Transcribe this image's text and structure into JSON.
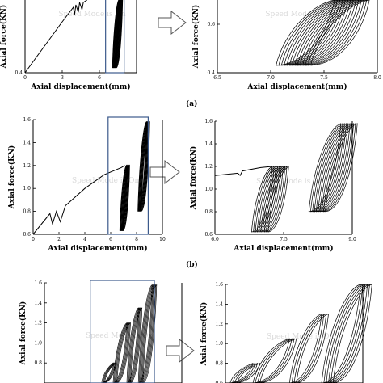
{
  "captions": [
    "(a)",
    "(b)"
  ],
  "watermark": "Speed Mode is On",
  "chart_data": [
    {
      "id": "a-left",
      "type": "line",
      "xlabel": "Axial displacement(mm)",
      "ylabel": "Axial force(KN)",
      "xlim": [
        0,
        9
      ],
      "ylim": [
        0.4,
        0.7
      ],
      "xticks": [
        0,
        3,
        6
      ],
      "yticks": [
        0.4
      ],
      "highlight": [
        6.5,
        8.0
      ],
      "curve": [
        [
          0.0,
          0.4
        ],
        [
          1.0,
          0.47
        ],
        [
          2.0,
          0.54
        ],
        [
          3.0,
          0.61
        ],
        [
          3.9,
          0.67
        ],
        [
          4.0,
          0.64
        ],
        [
          4.1,
          0.68
        ],
        [
          4.3,
          0.65
        ],
        [
          4.4,
          0.69
        ],
        [
          4.6,
          0.66
        ],
        [
          4.7,
          0.69
        ],
        [
          5.0,
          0.7
        ]
      ],
      "loops": {
        "x0": 7.05,
        "x1": 7.55,
        "y0": 0.42,
        "y1": 0.7,
        "n": 14,
        "dx": 0.025
      }
    },
    {
      "id": "a-right",
      "type": "line",
      "xlabel": "Axial displacement(mm)",
      "ylabel": "Axial force(KN)",
      "xlim": [
        6.5,
        8.0
      ],
      "ylim": [
        0.4,
        0.7
      ],
      "xticks": [
        6.5,
        7.0,
        7.5,
        8.0
      ],
      "yticks": [
        0.4,
        0.6
      ],
      "loops": {
        "x0": 7.05,
        "x1": 7.6,
        "y0": 0.43,
        "y1": 0.7,
        "n": 14,
        "dx": 0.025
      }
    },
    {
      "id": "b-left",
      "type": "line",
      "xlabel": "Axial displacement(mm)",
      "ylabel": "Axial force(KN)",
      "xlim": [
        0,
        10
      ],
      "ylim": [
        0.6,
        1.6
      ],
      "xticks": [
        0,
        2,
        4,
        6,
        8,
        10
      ],
      "yticks": [
        0.6,
        0.8,
        1.0,
        1.2,
        1.4,
        1.6
      ],
      "highlight": [
        5.8,
        8.9
      ],
      "curve": [
        [
          0.0,
          0.6
        ],
        [
          1.3,
          0.78
        ],
        [
          1.5,
          0.69
        ],
        [
          1.8,
          0.8
        ],
        [
          2.1,
          0.71
        ],
        [
          2.5,
          0.85
        ],
        [
          4.0,
          1.0
        ],
        [
          5.5,
          1.12
        ],
        [
          6.8,
          1.18
        ],
        [
          7.1,
          1.2
        ]
      ],
      "loops": [
        {
          "x0": 6.7,
          "x1": 7.2,
          "y0": 0.63,
          "y1": 1.2,
          "n": 10,
          "dx": 0.03
        },
        {
          "x0": 8.1,
          "x1": 8.75,
          "y0": 0.8,
          "y1": 1.58,
          "n": 10,
          "dx": 0.03
        }
      ]
    },
    {
      "id": "b-right",
      "type": "line",
      "xlabel": "Axial displacement(mm)",
      "ylabel": "Axial force(KN)",
      "xlim": [
        6.0,
        9.0
      ],
      "ylim": [
        0.6,
        1.6
      ],
      "xticks": [
        6.0,
        7.5,
        9.0
      ],
      "yticks": [
        0.6,
        0.8,
        1.0,
        1.2,
        1.4,
        1.6
      ],
      "curve": [
        [
          6.0,
          1.12
        ],
        [
          6.5,
          1.14
        ],
        [
          6.55,
          1.12
        ],
        [
          6.6,
          1.16
        ],
        [
          7.0,
          1.19
        ],
        [
          7.25,
          1.2
        ]
      ],
      "loops": [
        {
          "x0": 6.8,
          "x1": 7.25,
          "y0": 0.62,
          "y1": 1.2,
          "n": 10,
          "dx": 0.04
        },
        {
          "x0": 8.05,
          "x1": 8.75,
          "y0": 0.8,
          "y1": 1.58,
          "n": 10,
          "dx": 0.04
        }
      ]
    },
    {
      "id": "c-left",
      "type": "line",
      "xlabel": "",
      "ylabel": "Axial force(KN)",
      "xlim": [
        4,
        10
      ],
      "ylim": [
        0.6,
        1.6
      ],
      "xticks": [],
      "yticks": [
        0.8,
        1.0,
        1.2,
        1.4,
        1.6
      ],
      "highlight": [
        6.0,
        8.8
      ],
      "loops": [
        {
          "x0": 6.5,
          "x1": 7.0,
          "y0": 0.6,
          "y1": 0.8,
          "n": 4,
          "dx": 0.04
        },
        {
          "x0": 7.0,
          "x1": 7.6,
          "y0": 0.6,
          "y1": 1.2,
          "n": 5,
          "dx": 0.04
        },
        {
          "x0": 7.6,
          "x1": 8.1,
          "y0": 0.6,
          "y1": 1.35,
          "n": 5,
          "dx": 0.04
        },
        {
          "x0": 8.1,
          "x1": 8.7,
          "y0": 0.6,
          "y1": 1.58,
          "n": 6,
          "dx": 0.04
        }
      ]
    },
    {
      "id": "c-right",
      "type": "line",
      "xlabel": "",
      "ylabel": "Axial force(KN)",
      "xlim": [
        6.0,
        9.0
      ],
      "ylim": [
        0.6,
        1.6
      ],
      "xticks": [],
      "yticks": [
        0.6,
        0.8,
        1.0,
        1.2,
        1.4,
        1.6
      ],
      "loops": [
        {
          "x0": 6.1,
          "x1": 6.6,
          "y0": 0.6,
          "y1": 0.8,
          "n": 4,
          "dx": 0.05
        },
        {
          "x0": 6.6,
          "x1": 7.4,
          "y0": 0.6,
          "y1": 1.05,
          "n": 4,
          "dx": 0.05
        },
        {
          "x0": 7.4,
          "x1": 8.1,
          "y0": 0.6,
          "y1": 1.3,
          "n": 4,
          "dx": 0.05
        },
        {
          "x0": 8.1,
          "x1": 8.95,
          "y0": 0.6,
          "y1": 1.6,
          "n": 6,
          "dx": 0.05
        }
      ]
    }
  ]
}
